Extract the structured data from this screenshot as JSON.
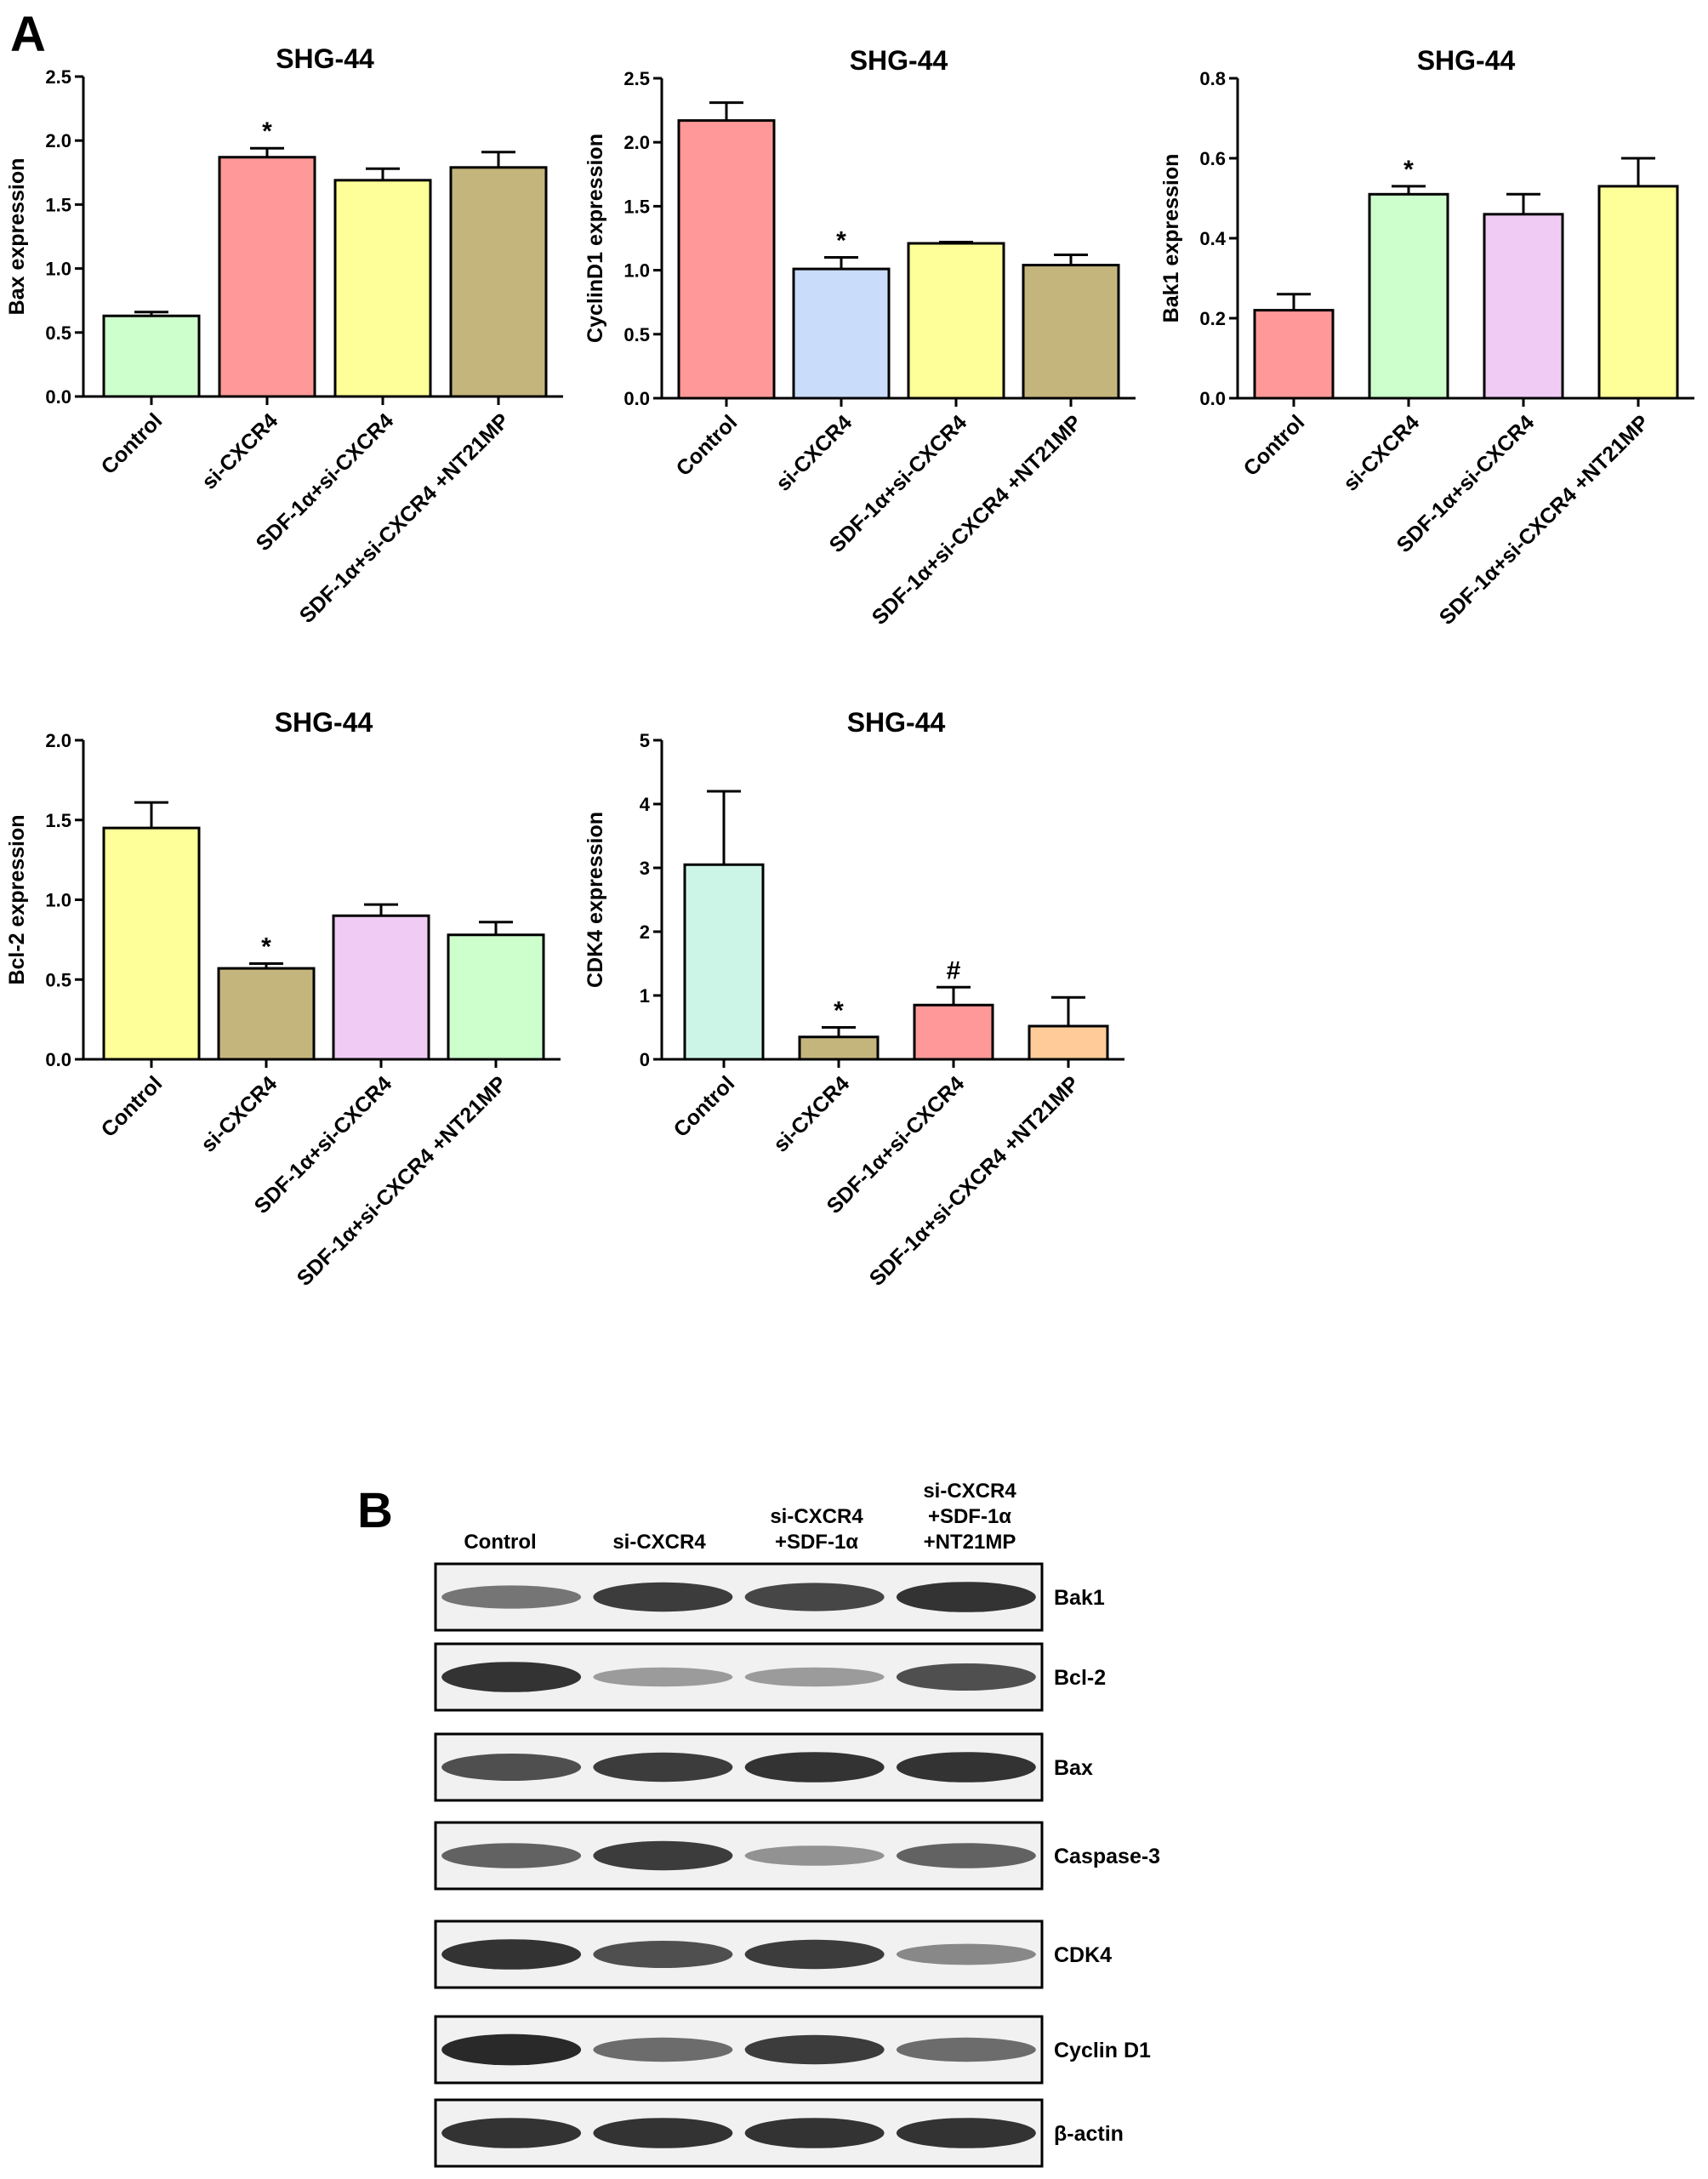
{
  "panels": [
    {
      "id": "A",
      "label": "A"
    },
    {
      "id": "B",
      "label": "B"
    }
  ],
  "chart_data": [
    {
      "type": "bar",
      "title": "SHG-44",
      "ylabel": "Bax expression",
      "ylim": [
        0,
        2.5
      ],
      "yticks": [
        "0.0",
        "0.5",
        "1.0",
        "1.5",
        "2.0",
        "2.5"
      ],
      "categories": [
        "Control",
        "si-CXCR4",
        "SDF-1α+si-CXCR4",
        "SDF-1α+si-CXCR4 +NT21MP"
      ],
      "values": [
        0.63,
        1.87,
        1.69,
        1.79
      ],
      "errors": [
        0.03,
        0.07,
        0.09,
        0.12
      ],
      "colors": [
        "#ccffcc",
        "#ff9999",
        "#ffff99",
        "#c4b57c"
      ],
      "annotations": [
        "",
        "*",
        "",
        ""
      ]
    },
    {
      "type": "bar",
      "title": "SHG-44",
      "ylabel": "CyclinD1 expression",
      "ylim": [
        0,
        2.5
      ],
      "yticks": [
        "0.0",
        "0.5",
        "1.0",
        "1.5",
        "2.0",
        "2.5"
      ],
      "categories": [
        "Control",
        "si-CXCR4",
        "SDF-1α+si-CXCR4",
        "SDF-1α+si-CXCR4 +NT21MP"
      ],
      "values": [
        2.17,
        1.01,
        1.21,
        1.04
      ],
      "errors": [
        0.14,
        0.09,
        0.01,
        0.08
      ],
      "colors": [
        "#ff9999",
        "#c9dcf9",
        "#ffff99",
        "#c4b57c"
      ],
      "annotations": [
        "",
        "*",
        "",
        ""
      ]
    },
    {
      "type": "bar",
      "title": "SHG-44",
      "ylabel": "Bak1 expression",
      "ylim": [
        0,
        0.8
      ],
      "yticks": [
        "0.0",
        "0.2",
        "0.4",
        "0.6",
        "0.8"
      ],
      "categories": [
        "Control",
        "si-CXCR4",
        "SDF-1α+si-CXCR4",
        "SDF-1α+si-CXCR4 +NT21MP"
      ],
      "values": [
        0.22,
        0.51,
        0.46,
        0.53
      ],
      "errors": [
        0.04,
        0.02,
        0.05,
        0.07
      ],
      "colors": [
        "#ff9999",
        "#ccffcc",
        "#f0ccf5",
        "#ffff99"
      ],
      "annotations": [
        "",
        "*",
        "",
        ""
      ]
    },
    {
      "type": "bar",
      "title": "SHG-44",
      "ylabel": "Bcl-2 expression",
      "ylim": [
        0,
        2.0
      ],
      "yticks": [
        "0.0",
        "0.5",
        "1.0",
        "1.5",
        "2.0"
      ],
      "categories": [
        "Control",
        "si-CXCR4",
        "SDF-1α+si-CXCR4",
        "SDF-1α+si-CXCR4 +NT21MP"
      ],
      "values": [
        1.45,
        0.57,
        0.9,
        0.78
      ],
      "errors": [
        0.16,
        0.03,
        0.07,
        0.08
      ],
      "colors": [
        "#ffff99",
        "#c4b57c",
        "#f0ccf5",
        "#ccffcc"
      ],
      "annotations": [
        "",
        "*",
        "",
        ""
      ]
    },
    {
      "type": "bar",
      "title": "SHG-44",
      "ylabel": "CDK4 expression",
      "ylim": [
        0,
        5
      ],
      "yticks": [
        "0",
        "1",
        "2",
        "3",
        "4",
        "5"
      ],
      "categories": [
        "Control",
        "si-CXCR4",
        "SDF-1α+si-CXCR4",
        "SDF-1α+si-CXCR4 +NT21MP"
      ],
      "values": [
        3.05,
        0.35,
        0.85,
        0.52
      ],
      "errors": [
        1.15,
        0.15,
        0.28,
        0.45
      ],
      "colors": [
        "#ccf5e8",
        "#c4b57c",
        "#ff9999",
        "#ffcc99"
      ],
      "annotations": [
        "",
        "*",
        "#",
        ""
      ]
    }
  ],
  "blot": {
    "columns": [
      "Control",
      "si-CXCR4",
      "si-CXCR4\n+SDF-1α",
      "si-CXCR4\n+SDF-1α\n+NT21MP"
    ],
    "rows": [
      {
        "label": "Bak1",
        "intensity": [
          0.55,
          0.85,
          0.8,
          0.9
        ]
      },
      {
        "label": "Bcl-2",
        "intensity": [
          0.9,
          0.35,
          0.35,
          0.75
        ]
      },
      {
        "label": "Bax",
        "intensity": [
          0.75,
          0.85,
          0.9,
          0.9
        ]
      },
      {
        "label": "Caspase-3",
        "intensity": [
          0.65,
          0.85,
          0.4,
          0.65
        ]
      },
      {
        "label": "CDK4",
        "intensity": [
          0.9,
          0.75,
          0.85,
          0.45
        ]
      },
      {
        "label": "Cyclin D1",
        "intensity": [
          0.95,
          0.6,
          0.85,
          0.6
        ]
      },
      {
        "label": "β-actin",
        "intensity": [
          0.9,
          0.9,
          0.9,
          0.9
        ]
      }
    ]
  }
}
